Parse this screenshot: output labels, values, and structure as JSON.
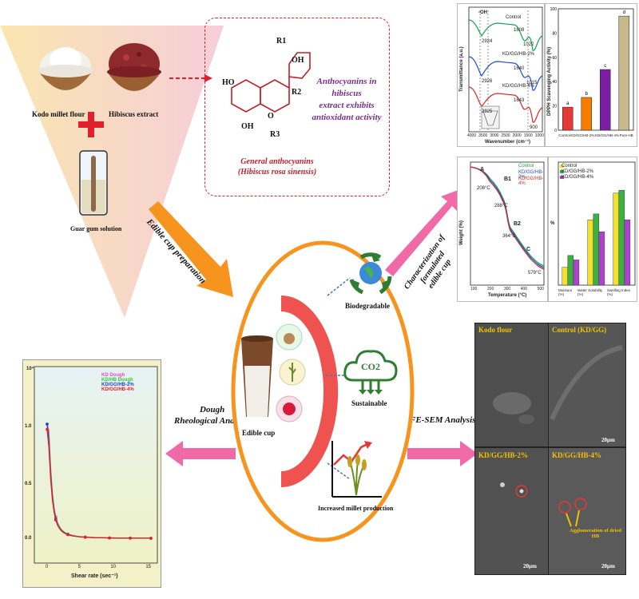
{
  "ingredients": {
    "kodo_flour": "Kodo millet flour",
    "hibiscus": "Hibiscus extract",
    "guar": "Guar gum solution"
  },
  "anthocyanin": {
    "substituent_1": "R1",
    "substituent_2": "R2",
    "substituent_3": "R3",
    "oh": "OH",
    "ho": "HO",
    "o": "O",
    "caption_line1": "General anthocyanins",
    "caption_line2": "(Hibiscus rosa sinensis)",
    "claim_line1": "Anthocyanins in hibiscus",
    "claim_line2": "extract exhibits",
    "claim_line3": "antioxidant activity"
  },
  "arrows": {
    "prep": "Edible cup preparation",
    "char_line1": "Characterization of",
    "char_line2": "formulated",
    "char_line3": "edible cup",
    "dough_line1": "Dough",
    "dough_line2": "Rheological Analysis",
    "fesem": "FE-SEM Analysis"
  },
  "center": {
    "cup": "Edible cup",
    "biodegradable": "Biodegradable",
    "co2": "CO2",
    "sustainable": "Sustainable",
    "millet": "Increased millet production"
  },
  "ftir": {
    "ylabel": "Transmittance (a.u.)",
    "xlabel": "Wavenumber (cm⁻¹)",
    "series": [
      "Control",
      "KD/GG/HB-2%",
      "KD/GG/HB-4%"
    ],
    "xticks": [
      "4000",
      "3500",
      "3000",
      "2500",
      "2000",
      "1500",
      "1000"
    ],
    "peak_oh": "-OH",
    "peaks": [
      "2924",
      "1608",
      "1022",
      "2926",
      "1640",
      "1015",
      "2925",
      "1643",
      "900"
    ]
  },
  "dpph": {
    "ylabel": "DPPH Scavenging Activity (%)",
    "categories": [
      "Control",
      "KD/GG/HB-2%",
      "KD/GG/HB-4%",
      "Pure HB"
    ],
    "values": [
      19,
      27,
      50,
      94
    ],
    "letters": [
      "a",
      "b",
      "c",
      "d"
    ],
    "colors": [
      "#e53935",
      "#f57c00",
      "#7b1fa2",
      "#c8b98a"
    ],
    "yticks": [
      "0",
      "20",
      "40",
      "60",
      "80",
      "100"
    ]
  },
  "tga": {
    "ylabel": "Weight (%)",
    "xlabel": "Temperature (°C)",
    "series": [
      "Control",
      "KD/GG/HB-2%",
      "KD/GG/HB-4%"
    ],
    "regions": [
      "A",
      "B",
      "B1",
      "B2",
      "C"
    ],
    "temps": [
      "208°C",
      "288°C",
      "364°C",
      "579°C"
    ],
    "yticks": [
      "100",
      "80",
      "60",
      "40",
      "20",
      "0"
    ],
    "xticks": [
      "100",
      "200",
      "300",
      "400",
      "500"
    ]
  },
  "props": {
    "ylabel": "%",
    "categories": [
      "Moisture (%)",
      "Water Solubility (%)",
      "Swelling Index (%)"
    ],
    "series": [
      "Control",
      "KD/GG/HB-2%",
      "KD/GG/HB-4%"
    ],
    "colors": [
      "#f0e130",
      "#3cb043",
      "#b042d0"
    ],
    "values": [
      [
        6,
        10,
        8.5
      ],
      [
        22,
        24,
        18
      ],
      [
        31,
        32,
        22
      ]
    ],
    "yticks": [
      "0",
      "5",
      "10",
      "15",
      "20",
      "25",
      "30",
      "35"
    ]
  },
  "rheo": {
    "xlabel": "Shear rate (sec⁻¹)",
    "ytop": "10⁴",
    "series": [
      "KD Dough",
      "KD/HB Dough",
      "KD/GG/HB-2%",
      "KD/GG/HB-4%"
    ],
    "colors": [
      "#ff3fd0",
      "#2ecc40",
      "#1f3fd0",
      "#e8201a"
    ],
    "yticks": [
      "1.0",
      "0.5",
      "0.0"
    ],
    "xticks": [
      "0",
      "5",
      "10",
      "15"
    ]
  },
  "sem": {
    "labels": [
      "Kodo flour",
      "Control (KD/GG)",
      "KD/GG/HB-2%",
      "KD/GG/HB-4%"
    ],
    "scale": "20μm",
    "note_line1": "Agglomeration of dried",
    "note_line2": "HB"
  }
}
